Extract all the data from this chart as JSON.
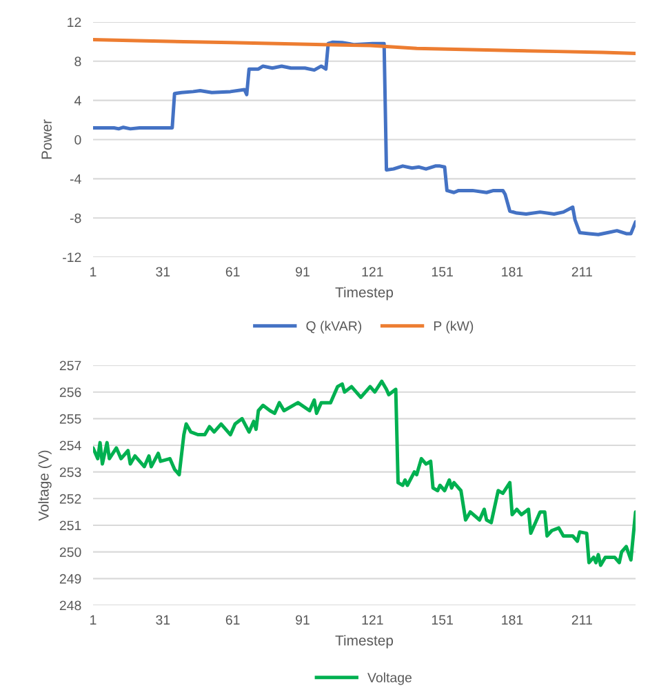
{
  "chart_data": [
    {
      "type": "line",
      "xlabel": "Timestep",
      "ylabel": "Power",
      "xlim": [
        1,
        234
      ],
      "xticks": [
        1,
        31,
        61,
        91,
        121,
        151,
        181,
        211
      ],
      "ylim": [
        -12,
        12
      ],
      "yticks": [
        -12,
        -8,
        -4,
        0,
        4,
        8,
        12
      ],
      "grid": "y",
      "legend": "bottom",
      "marker": "none",
      "line_style": "solid",
      "series": [
        {
          "name": "Q (kVAR)",
          "color": "#4472c4",
          "x": [
            1,
            10,
            12,
            14,
            17,
            21,
            35,
            36,
            39,
            44,
            47,
            52,
            60,
            66,
            67,
            68,
            72,
            74,
            78,
            82,
            86,
            92,
            96,
            99,
            101,
            102,
            104,
            108,
            113,
            121,
            126,
            127,
            130,
            134,
            138,
            141,
            144,
            148,
            150,
            152,
            153,
            156,
            158,
            164,
            170,
            173,
            177,
            178,
            180,
            183,
            187,
            193,
            199,
            203,
            207,
            208,
            210,
            214,
            218,
            222,
            226,
            230,
            232,
            234
          ],
          "values": [
            1.2,
            1.2,
            1.1,
            1.25,
            1.1,
            1.2,
            1.2,
            4.7,
            4.8,
            4.9,
            5.0,
            4.8,
            4.9,
            5.1,
            4.6,
            7.2,
            7.2,
            7.5,
            7.3,
            7.5,
            7.3,
            7.3,
            7.1,
            7.5,
            7.2,
            9.8,
            9.95,
            9.9,
            9.7,
            9.8,
            9.8,
            -3.1,
            -3.0,
            -2.7,
            -2.9,
            -2.8,
            -3.0,
            -2.7,
            -2.7,
            -2.8,
            -5.2,
            -5.4,
            -5.2,
            -5.2,
            -5.4,
            -5.2,
            -5.2,
            -5.6,
            -7.3,
            -7.5,
            -7.6,
            -7.4,
            -7.6,
            -7.4,
            -6.9,
            -8.2,
            -9.5,
            -9.6,
            -9.7,
            -9.5,
            -9.3,
            -9.6,
            -9.6,
            -8.4
          ]
        },
        {
          "name": "P (kW)",
          "color": "#ed7d31",
          "x": [
            1,
            20,
            40,
            60,
            80,
            100,
            120,
            140,
            160,
            180,
            200,
            220,
            234
          ],
          "values": [
            10.2,
            10.1,
            10.0,
            9.9,
            9.8,
            9.7,
            9.6,
            9.3,
            9.2,
            9.1,
            9.0,
            8.9,
            8.8
          ]
        }
      ]
    },
    {
      "type": "line",
      "xlabel": "Timestep",
      "ylabel": "Voltage (V)",
      "xlim": [
        1,
        234
      ],
      "xticks": [
        1,
        31,
        61,
        91,
        121,
        151,
        181,
        211
      ],
      "ylim": [
        248,
        257
      ],
      "yticks": [
        248,
        249,
        250,
        251,
        252,
        253,
        254,
        255,
        256,
        257
      ],
      "grid": "y",
      "legend": "bottom",
      "marker": "none",
      "line_style": "solid",
      "series": [
        {
          "name": "Voltage",
          "color": "#00b050",
          "x": [
            1,
            3,
            4,
            5,
            7,
            8,
            11,
            13,
            16,
            17,
            19,
            23,
            25,
            26,
            29,
            30,
            34,
            36,
            38,
            40,
            41,
            43,
            46,
            49,
            51,
            53,
            56,
            60,
            62,
            65,
            68,
            70,
            71,
            72,
            74,
            77,
            79,
            81,
            83,
            89,
            94,
            96,
            97,
            99,
            103,
            106,
            108,
            109,
            112,
            116,
            120,
            122,
            125,
            127,
            128,
            131,
            132,
            134,
            135,
            136,
            139,
            140,
            142,
            144,
            146,
            147,
            149,
            150,
            152,
            154,
            155,
            156,
            159,
            161,
            163,
            167,
            169,
            170,
            172,
            175,
            177,
            180,
            181,
            183,
            185,
            188,
            189,
            191,
            193,
            195,
            196,
            198,
            201,
            203,
            207,
            209,
            210,
            213,
            214,
            216,
            217,
            218,
            219,
            221,
            225,
            227,
            228,
            230,
            232,
            234
          ],
          "values": [
            253.9,
            253.5,
            254.1,
            253.3,
            254.1,
            253.5,
            253.9,
            253.5,
            253.8,
            253.3,
            253.6,
            253.2,
            253.6,
            253.2,
            253.7,
            253.4,
            253.5,
            253.1,
            252.9,
            254.4,
            254.8,
            254.5,
            254.4,
            254.4,
            254.7,
            254.5,
            254.8,
            254.4,
            254.8,
            255.0,
            254.5,
            254.9,
            254.6,
            255.3,
            255.5,
            255.3,
            255.2,
            255.6,
            255.3,
            255.6,
            255.3,
            255.7,
            255.2,
            255.6,
            255.6,
            256.2,
            256.3,
            256.0,
            256.2,
            255.8,
            256.2,
            256.0,
            256.4,
            256.1,
            255.9,
            256.1,
            252.6,
            252.5,
            252.7,
            252.5,
            253.0,
            252.9,
            253.5,
            253.3,
            253.4,
            252.4,
            252.3,
            252.5,
            252.3,
            252.7,
            252.4,
            252.6,
            252.3,
            251.2,
            251.5,
            251.2,
            251.6,
            251.2,
            251.1,
            252.3,
            252.2,
            252.6,
            251.4,
            251.6,
            251.4,
            251.6,
            250.7,
            251.1,
            251.5,
            251.5,
            250.6,
            250.8,
            250.9,
            250.6,
            250.6,
            250.4,
            250.75,
            250.7,
            249.6,
            249.8,
            249.6,
            249.9,
            249.5,
            249.8,
            249.8,
            249.6,
            250.0,
            250.2,
            249.7,
            251.5
          ]
        }
      ]
    }
  ]
}
